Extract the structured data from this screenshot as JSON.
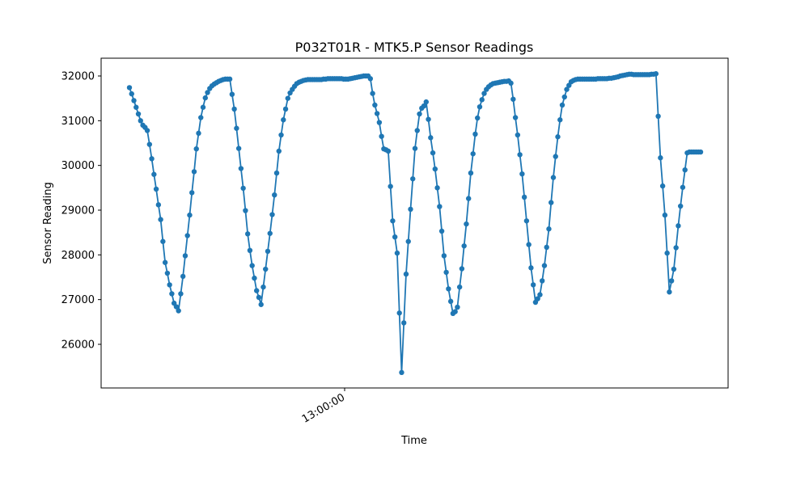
{
  "chart_data": {
    "type": "line",
    "title": "P032T01R - MTK5.P Sensor Readings",
    "xlabel": "Time",
    "ylabel": "Sensor Reading",
    "x_axis": {
      "kind": "time",
      "visible_tick_labels": [
        "13:00:00"
      ],
      "label_rotation_deg": 30
    },
    "y_axis": {
      "ticks": [
        26000,
        27000,
        28000,
        29000,
        30000,
        31000,
        32000
      ],
      "ylim": [
        25300,
        32400
      ]
    },
    "grid": false,
    "legend": "none",
    "series": [
      {
        "color": "#1f77b4",
        "marker": "circle",
        "values": [
          31740,
          31600,
          31450,
          31300,
          31150,
          31000,
          30900,
          30850,
          30780,
          30470,
          30150,
          29800,
          29470,
          29120,
          28790,
          28300,
          27830,
          27590,
          27330,
          27130,
          26920,
          26840,
          26750,
          27130,
          27520,
          27980,
          28430,
          28890,
          29390,
          29860,
          30370,
          30720,
          31070,
          31300,
          31510,
          31630,
          31720,
          31780,
          31820,
          31850,
          31880,
          31900,
          31920,
          31930,
          31930,
          31930,
          31590,
          31260,
          30830,
          30380,
          29930,
          29490,
          28990,
          28470,
          28100,
          27760,
          27480,
          27200,
          27050,
          26890,
          27280,
          27680,
          28080,
          28480,
          28900,
          29340,
          29830,
          30320,
          30680,
          31020,
          31260,
          31500,
          31620,
          31700,
          31770,
          31830,
          31860,
          31880,
          31900,
          31910,
          31920,
          31920,
          31920,
          31920,
          31920,
          31920,
          31920,
          31930,
          31930,
          31940,
          31940,
          31940,
          31940,
          31940,
          31940,
          31940,
          31930,
          31930,
          31930,
          31940,
          31950,
          31960,
          31970,
          31980,
          31990,
          32000,
          32000,
          32000,
          31940,
          31610,
          31350,
          31160,
          30960,
          30650,
          30370,
          30350,
          30320,
          29530,
          28760,
          28400,
          28040,
          26700,
          25370,
          26480,
          27570,
          28300,
          29020,
          29700,
          30380,
          30780,
          31150,
          31280,
          31330,
          31420,
          31030,
          30620,
          30280,
          29920,
          29500,
          29080,
          28530,
          27980,
          27610,
          27240,
          26960,
          26690,
          26730,
          26830,
          27280,
          27690,
          28200,
          28690,
          29260,
          29830,
          30260,
          30700,
          31060,
          31310,
          31470,
          31610,
          31700,
          31760,
          31800,
          31830,
          31840,
          31850,
          31860,
          31870,
          31880,
          31880,
          31890,
          31840,
          31480,
          31070,
          30680,
          30240,
          29810,
          29290,
          28760,
          28230,
          27710,
          27330,
          26940,
          27020,
          27110,
          27420,
          27760,
          28170,
          28580,
          29170,
          29730,
          30200,
          30640,
          31020,
          31350,
          31530,
          31700,
          31790,
          31870,
          31900,
          31920,
          31930,
          31930,
          31930,
          31930,
          31930,
          31930,
          31930,
          31930,
          31930,
          31940,
          31940,
          31940,
          31940,
          31940,
          31950,
          31950,
          31960,
          31970,
          31980,
          32000,
          32010,
          32020,
          32030,
          32040,
          32040,
          32030,
          32030,
          32030,
          32030,
          32030,
          32030,
          32030,
          32030,
          32040,
          32040,
          32050,
          31100,
          30170,
          29540,
          28890,
          28040,
          27170,
          27420,
          27680,
          28160,
          28650,
          29090,
          29510,
          29900,
          30280,
          30300,
          30300,
          30300,
          30300,
          30300,
          30300
        ]
      }
    ]
  }
}
